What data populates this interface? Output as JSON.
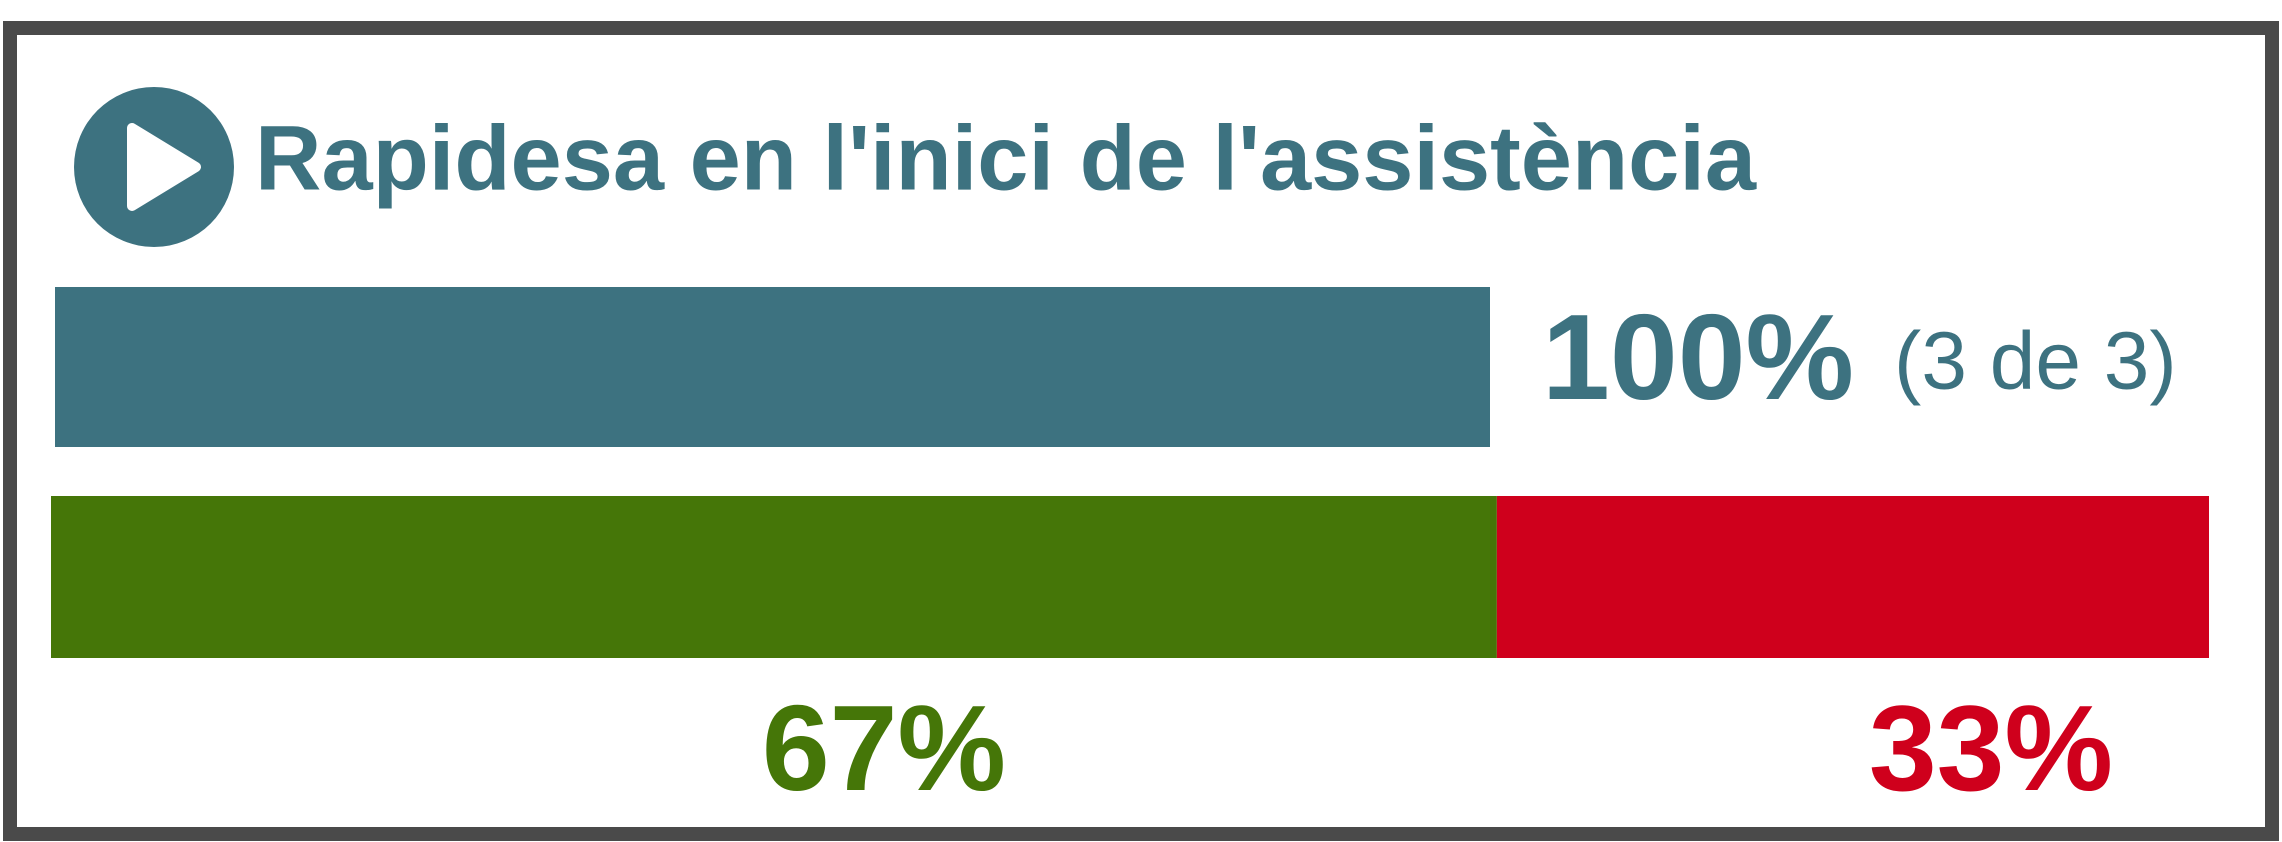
{
  "chart_data": {
    "type": "bar",
    "title": "Rapidesa en l'inici de l'assistència",
    "values": [
      100
    ],
    "value_labels": [
      "100%"
    ],
    "annotation": "(3 de 3)",
    "color": "#3d7280",
    "xlim": [
      0,
      100
    ],
    "split_values": [
      67,
      33
    ],
    "split_labels": [
      "67%",
      "33%"
    ],
    "split_colors": [
      "#457608",
      "#cf001c"
    ]
  }
}
